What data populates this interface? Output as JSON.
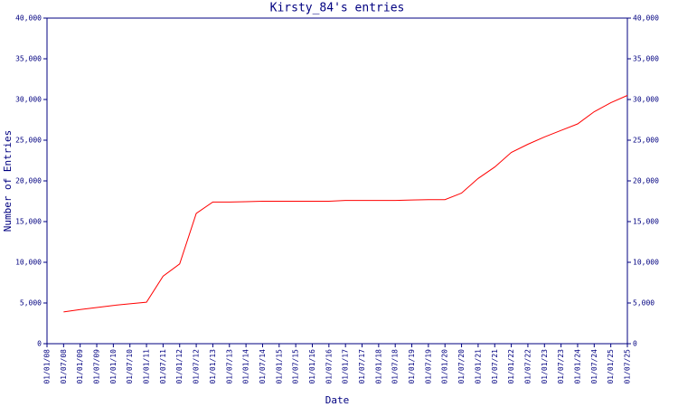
{
  "chart_data": {
    "type": "line",
    "title": "Kirsty_84's entries",
    "x_label": "Date",
    "y_label": "Number of Entries",
    "categories": [
      "01/01/08",
      "01/07/08",
      "01/01/09",
      "01/07/09",
      "01/01/10",
      "01/07/10",
      "01/01/11",
      "01/07/11",
      "01/01/12",
      "01/07/12",
      "01/01/13",
      "01/07/13",
      "01/01/14",
      "01/07/14",
      "01/01/15",
      "01/07/15",
      "01/01/16",
      "01/07/16",
      "01/01/17",
      "01/07/17",
      "01/01/18",
      "01/07/18",
      "01/01/19",
      "01/07/19",
      "01/01/20",
      "01/07/20",
      "01/01/21",
      "01/07/21",
      "01/01/22",
      "01/07/22",
      "01/01/23",
      "01/07/23",
      "01/01/24",
      "01/07/24",
      "01/01/25",
      "01/07/25"
    ],
    "values": [
      null,
      3900,
      4200,
      4450,
      4700,
      4900,
      5100,
      8300,
      9800,
      16000,
      17400,
      17400,
      17450,
      17500,
      17500,
      17500,
      17500,
      17500,
      17600,
      17600,
      17600,
      17600,
      17650,
      17700,
      17700,
      18500,
      20300,
      21700,
      23500,
      24500,
      25400,
      26200,
      27000,
      28500,
      29600,
      30500
    ],
    "color": "#ff0000",
    "ylim": [
      0,
      40000
    ],
    "yticks": [
      0,
      {
        "value": 5000,
        "label": "5,000"
      },
      {
        "value": 10000,
        "label": "10,000"
      },
      {
        "value": 15000,
        "label": "15,000"
      },
      {
        "value": 20000,
        "label": "20,000"
      },
      {
        "value": 25000,
        "label": "25,000"
      },
      {
        "value": 30000,
        "label": "30,000"
      },
      {
        "value": 35000,
        "label": "35,000"
      },
      {
        "value": 40000,
        "label": "40,000"
      }
    ],
    "y2lim": [
      0,
      40000
    ],
    "y2ticks": [
      0,
      {
        "value": 5000,
        "label": "5,000"
      },
      {
        "value": 10000,
        "label": "10,000"
      },
      {
        "value": 15000,
        "label": "15,000"
      },
      {
        "value": 20000,
        "label": "20,000"
      },
      {
        "value": 25000,
        "label": "25,000"
      },
      {
        "value": 30000,
        "label": "30,000"
      },
      {
        "value": 35000,
        "label": "35,000"
      },
      {
        "value": 40000,
        "label": "40,000"
      }
    ],
    "grid": false
  }
}
